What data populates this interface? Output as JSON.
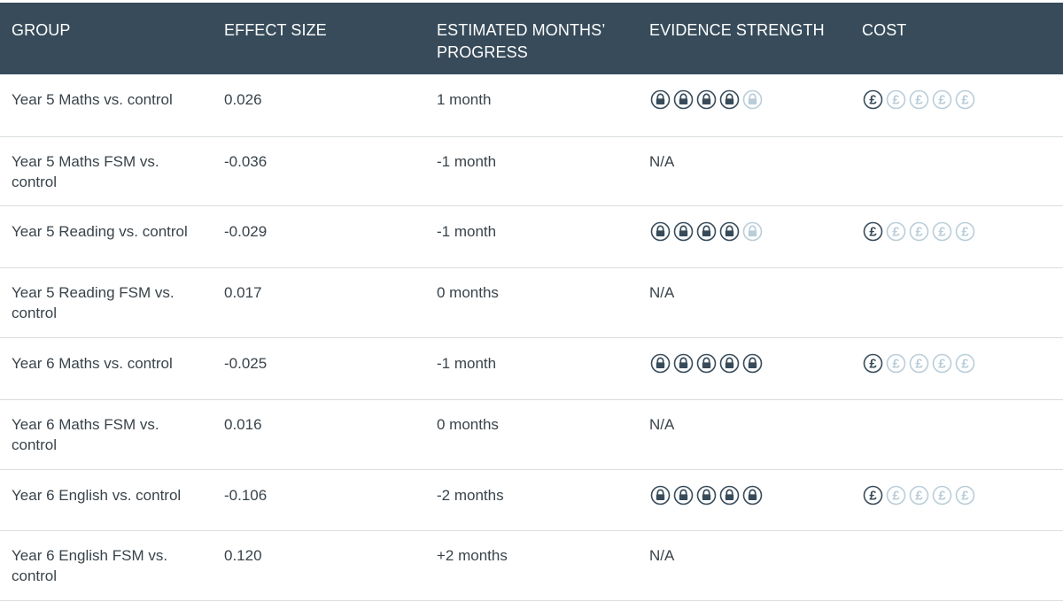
{
  "table": {
    "headers": {
      "group": "GROUP",
      "effect_size": "EFFECT SIZE",
      "months_line1": "ESTIMATED MONTHS’",
      "months_line2": "PROGRESS",
      "evidence": "EVIDENCE STRENGTH",
      "cost": "COST"
    },
    "rows": [
      {
        "group": "Year 5 Maths vs. control",
        "effect_size": "0.026",
        "months": "1 month",
        "evidence": null,
        "evidence_level": 4,
        "cost_level": 1
      },
      {
        "group": "Year 5 Maths FSM vs. control",
        "effect_size": "-0.036",
        "months": "-1 month",
        "evidence": "N/A",
        "evidence_level": null,
        "cost_level": null
      },
      {
        "group": "Year 5 Reading vs. control",
        "effect_size": "-0.029",
        "months": "-1 month",
        "evidence": null,
        "evidence_level": 4,
        "cost_level": 1
      },
      {
        "group": "Year 5 Reading FSM vs. control",
        "effect_size": "0.017",
        "months": "0 months",
        "evidence": "N/A",
        "evidence_level": null,
        "cost_level": null
      },
      {
        "group": "Year 6 Maths vs. control",
        "effect_size": "-0.025",
        "months": "-1 month",
        "evidence": null,
        "evidence_level": 5,
        "cost_level": 1
      },
      {
        "group": "Year 6 Maths FSM vs. control",
        "effect_size": "0.016",
        "months": "0 months",
        "evidence": "N/A",
        "evidence_level": null,
        "cost_level": null
      },
      {
        "group": "Year 6 English vs. control",
        "effect_size": "-0.106",
        "months": "-2 months",
        "evidence": null,
        "evidence_level": 5,
        "cost_level": 1
      },
      {
        "group": "Year 6 English FSM vs. control",
        "effect_size": "0.120",
        "months": "+2 months",
        "evidence": "N/A",
        "evidence_level": null,
        "cost_level": null
      }
    ],
    "icons": {
      "evidence": "padlock-icon",
      "cost": "pound-coin-icon",
      "cost_symbol": "£",
      "max_level": 5
    },
    "colors": {
      "header_bg": "#374b5a",
      "header_text": "#ffffff",
      "icon_active": "#374b5a",
      "icon_inactive": "#b9cdd9",
      "divider": "#d9dde0"
    }
  }
}
